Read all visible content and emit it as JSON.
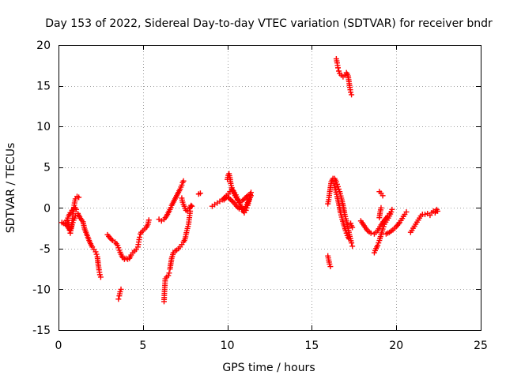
{
  "chart_data": {
    "type": "scatter",
    "title": "Day 153 of 2022, Sidereal Day-to-day VTEC variation (SDTVAR) for receiver bndr",
    "xlabel": "GPS time / hours",
    "ylabel": "SDTVAR / TECUs",
    "xlim": [
      0,
      25
    ],
    "ylim": [
      -15,
      20
    ],
    "xticks": [
      0,
      5,
      10,
      15,
      20,
      25
    ],
    "yticks": [
      -15,
      -10,
      -5,
      0,
      5,
      10,
      15,
      20
    ],
    "xtick_labels": [
      "0",
      "5",
      "10",
      "15",
      "20",
      "25"
    ],
    "ytick_labels": [
      "-15",
      "-10",
      "-5",
      "0",
      "5",
      "10",
      "15",
      "20"
    ],
    "grid": true,
    "marker": "plus",
    "color": "#ff0000",
    "series": [
      {
        "name": "SDTVAR",
        "segments": [
          [
            [
              0.2,
              -1.8
            ],
            [
              0.4,
              -2.0
            ],
            [
              0.55,
              -2.3
            ],
            [
              0.65,
              -2.7
            ],
            [
              0.7,
              -3.1
            ],
            [
              0.75,
              -2.5
            ],
            [
              0.8,
              -1.8
            ],
            [
              0.85,
              -1.0
            ],
            [
              0.9,
              -0.2
            ],
            [
              0.95,
              0.6
            ],
            [
              1.0,
              1.1
            ],
            [
              1.1,
              1.4
            ],
            [
              1.2,
              1.3
            ]
          ],
          [
            [
              0.5,
              -1.5
            ],
            [
              0.6,
              -1.0
            ],
            [
              0.7,
              -0.6
            ],
            [
              0.8,
              -0.3
            ],
            [
              0.9,
              -0.1
            ],
            [
              1.0,
              0.0
            ],
            [
              1.05,
              -0.2
            ]
          ],
          [
            [
              0.5,
              -1.6
            ],
            [
              0.6,
              -2.0
            ],
            [
              0.7,
              -2.8
            ],
            [
              0.8,
              -2.1
            ],
            [
              0.9,
              -1.5
            ],
            [
              1.0,
              -1.0
            ]
          ],
          [
            [
              1.15,
              -0.7
            ],
            [
              1.3,
              -1.3
            ],
            [
              1.45,
              -1.7
            ],
            [
              1.55,
              -2.6
            ],
            [
              1.7,
              -3.4
            ],
            [
              1.85,
              -4.2
            ],
            [
              2.0,
              -4.8
            ],
            [
              2.1,
              -5.1
            ],
            [
              2.2,
              -5.4
            ],
            [
              2.3,
              -6.0
            ],
            [
              2.35,
              -6.9
            ],
            [
              2.4,
              -7.6
            ],
            [
              2.45,
              -8.2
            ],
            [
              2.5,
              -8.5
            ]
          ],
          [
            [
              2.9,
              -3.3
            ],
            [
              3.05,
              -3.7
            ],
            [
              3.2,
              -4.0
            ],
            [
              3.35,
              -4.2
            ],
            [
              3.5,
              -4.6
            ],
            [
              3.6,
              -5.2
            ],
            [
              3.7,
              -5.7
            ],
            [
              3.8,
              -6.1
            ],
            [
              3.9,
              -6.3
            ],
            [
              4.0,
              -6.2
            ],
            [
              4.1,
              -6.3
            ],
            [
              4.2,
              -6.2
            ],
            [
              4.3,
              -5.8
            ],
            [
              4.4,
              -5.5
            ],
            [
              4.5,
              -5.3
            ],
            [
              4.6,
              -5.1
            ],
            [
              4.7,
              -4.8
            ],
            [
              4.75,
              -4.2
            ],
            [
              4.8,
              -3.6
            ],
            [
              4.85,
              -3.2
            ],
            [
              4.9,
              -3.0
            ],
            [
              5.0,
              -2.8
            ],
            [
              5.1,
              -2.6
            ],
            [
              5.2,
              -2.4
            ],
            [
              5.3,
              -2.0
            ],
            [
              5.35,
              -1.5
            ]
          ],
          [
            [
              3.55,
              -11.2
            ],
            [
              3.6,
              -10.8
            ],
            [
              3.65,
              -10.3
            ],
            [
              3.7,
              -10.0
            ]
          ],
          [
            [
              5.95,
              -1.4
            ],
            [
              6.1,
              -1.6
            ],
            [
              6.25,
              -1.4
            ],
            [
              6.4,
              -1.0
            ],
            [
              6.5,
              -0.6
            ],
            [
              6.6,
              -0.2
            ],
            [
              6.7,
              0.3
            ],
            [
              6.8,
              0.7
            ],
            [
              6.9,
              1.1
            ],
            [
              7.0,
              1.5
            ],
            [
              7.1,
              1.9
            ],
            [
              7.2,
              2.3
            ],
            [
              7.3,
              2.8
            ],
            [
              7.35,
              3.1
            ],
            [
              7.4,
              3.3
            ]
          ],
          [
            [
              6.25,
              -11.5
            ],
            [
              6.27,
              -10.5
            ],
            [
              6.3,
              -9.5
            ],
            [
              6.32,
              -8.7
            ],
            [
              6.4,
              -8.5
            ],
            [
              6.5,
              -8.3
            ],
            [
              6.55,
              -8.0
            ]
          ],
          [
            [
              6.6,
              -7.5
            ],
            [
              6.7,
              -6.2
            ],
            [
              6.8,
              -5.5
            ],
            [
              6.9,
              -5.3
            ],
            [
              7.0,
              -5.2
            ],
            [
              7.1,
              -5.0
            ],
            [
              7.2,
              -4.8
            ],
            [
              7.3,
              -4.5
            ],
            [
              7.4,
              -4.2
            ],
            [
              7.5,
              -3.8
            ],
            [
              7.55,
              -3.3
            ],
            [
              7.6,
              -2.8
            ],
            [
              7.7,
              -2.0
            ],
            [
              7.75,
              -1.2
            ],
            [
              7.8,
              -0.4
            ]
          ],
          [
            [
              7.3,
              1.2
            ],
            [
              7.35,
              0.7
            ],
            [
              7.45,
              0.2
            ],
            [
              7.55,
              -0.3
            ],
            [
              7.65,
              -0.4
            ],
            [
              7.75,
              -0.1
            ],
            [
              7.85,
              0.3
            ],
            [
              7.9,
              0.2
            ]
          ],
          [
            [
              8.3,
              1.7
            ],
            [
              8.4,
              1.8
            ]
          ],
          [
            [
              9.1,
              0.2
            ],
            [
              9.25,
              0.4
            ],
            [
              9.4,
              0.6
            ],
            [
              9.55,
              0.8
            ],
            [
              9.7,
              1.0
            ],
            [
              9.85,
              1.3
            ],
            [
              9.95,
              1.5
            ],
            [
              10.05,
              1.7
            ],
            [
              10.15,
              2.0
            ],
            [
              10.25,
              2.3
            ],
            [
              10.35,
              2.1
            ],
            [
              10.5,
              1.6
            ],
            [
              10.6,
              1.1
            ],
            [
              10.75,
              0.4
            ],
            [
              10.9,
              -0.2
            ],
            [
              11.0,
              -0.6
            ],
            [
              11.1,
              -0.3
            ],
            [
              11.2,
              0.3
            ],
            [
              11.3,
              1.0
            ],
            [
              11.35,
              1.6
            ],
            [
              11.4,
              1.9
            ]
          ],
          [
            [
              10.0,
              3.5
            ],
            [
              10.05,
              4.0
            ],
            [
              10.1,
              4.2
            ],
            [
              10.15,
              3.7
            ],
            [
              10.2,
              3.0
            ],
            [
              10.3,
              2.2
            ],
            [
              10.45,
              1.5
            ],
            [
              10.6,
              1.0
            ],
            [
              10.75,
              0.8
            ],
            [
              10.9,
              0.9
            ],
            [
              11.05,
              1.2
            ],
            [
              11.2,
              1.5
            ],
            [
              11.35,
              1.7
            ]
          ],
          [
            [
              9.8,
              1.0
            ],
            [
              9.95,
              1.3
            ],
            [
              10.1,
              1.2
            ],
            [
              10.25,
              0.9
            ],
            [
              10.4,
              0.6
            ],
            [
              10.55,
              0.2
            ],
            [
              10.7,
              -0.1
            ],
            [
              10.85,
              -0.2
            ],
            [
              11.0,
              -0.1
            ],
            [
              11.15,
              0.4
            ],
            [
              11.3,
              1.1
            ],
            [
              11.4,
              1.5
            ]
          ],
          [
            [
              16.45,
              18.3
            ],
            [
              16.5,
              17.8
            ],
            [
              16.55,
              17.2
            ],
            [
              16.6,
              16.8
            ],
            [
              16.65,
              16.5
            ],
            [
              16.75,
              16.3
            ],
            [
              16.85,
              16.1
            ],
            [
              16.95,
              16.3
            ],
            [
              17.05,
              16.6
            ],
            [
              17.15,
              16.2
            ],
            [
              17.2,
              15.5
            ],
            [
              17.25,
              14.8
            ],
            [
              17.3,
              14.2
            ],
            [
              17.35,
              13.9
            ]
          ],
          [
            [
              15.95,
              -5.9
            ],
            [
              16.0,
              -6.4
            ],
            [
              16.05,
              -6.9
            ],
            [
              16.1,
              -7.2
            ]
          ],
          [
            [
              15.95,
              0.5
            ],
            [
              16.0,
              1.0
            ],
            [
              16.05,
              1.8
            ],
            [
              16.1,
              2.5
            ],
            [
              16.15,
              3.2
            ],
            [
              16.25,
              3.6
            ],
            [
              16.35,
              3.6
            ],
            [
              16.45,
              3.2
            ],
            [
              16.55,
              2.6
            ],
            [
              16.65,
              2.0
            ],
            [
              16.75,
              1.2
            ],
            [
              16.85,
              0.3
            ],
            [
              16.95,
              -0.8
            ],
            [
              17.05,
              -1.6
            ],
            [
              17.15,
              -2.5
            ],
            [
              17.25,
              -3.5
            ],
            [
              17.35,
              -4.3
            ],
            [
              17.4,
              -4.7
            ]
          ],
          [
            [
              16.3,
              3.0
            ],
            [
              16.4,
              2.2
            ],
            [
              16.5,
              1.4
            ],
            [
              16.6,
              0.5
            ],
            [
              16.7,
              -0.6
            ],
            [
              16.8,
              -1.4
            ],
            [
              16.9,
              -2.1
            ],
            [
              17.0,
              -2.8
            ],
            [
              17.1,
              -3.4
            ],
            [
              17.2,
              -3.8
            ]
          ],
          [
            [
              17.3,
              -1.9
            ],
            [
              17.35,
              -2.2
            ],
            [
              17.4,
              -2.4
            ]
          ],
          [
            [
              17.9,
              -1.6
            ],
            [
              18.1,
              -2.2
            ],
            [
              18.3,
              -2.8
            ],
            [
              18.5,
              -3.1
            ],
            [
              18.7,
              -3.2
            ],
            [
              18.9,
              -2.8
            ],
            [
              19.1,
              -2.1
            ],
            [
              19.3,
              -1.5
            ],
            [
              19.5,
              -1.0
            ],
            [
              19.6,
              -0.7
            ]
          ],
          [
            [
              18.7,
              -5.5
            ],
            [
              18.8,
              -5.0
            ],
            [
              18.9,
              -4.6
            ],
            [
              19.0,
              -4.0
            ],
            [
              19.1,
              -3.3
            ],
            [
              19.2,
              -2.6
            ],
            [
              19.3,
              -2.0
            ],
            [
              19.45,
              -1.5
            ],
            [
              19.6,
              -1.0
            ],
            [
              19.7,
              -0.5
            ],
            [
              19.75,
              -0.2
            ]
          ],
          [
            [
              19.0,
              -1.2
            ],
            [
              19.05,
              -0.5
            ],
            [
              19.1,
              0.0
            ]
          ],
          [
            [
              19.0,
              2.0
            ],
            [
              19.1,
              1.8
            ],
            [
              19.2,
              1.5
            ]
          ],
          [
            [
              19.4,
              -3.2
            ],
            [
              19.6,
              -3.0
            ],
            [
              19.8,
              -2.7
            ],
            [
              20.0,
              -2.3
            ],
            [
              20.2,
              -1.8
            ],
            [
              20.35,
              -1.3
            ],
            [
              20.5,
              -0.8
            ],
            [
              20.6,
              -0.5
            ]
          ],
          [
            [
              20.85,
              -3.0
            ],
            [
              21.0,
              -2.5
            ],
            [
              21.15,
              -2.0
            ],
            [
              21.3,
              -1.5
            ],
            [
              21.45,
              -1.0
            ],
            [
              21.55,
              -0.8
            ],
            [
              21.7,
              -0.8
            ],
            [
              21.85,
              -0.7
            ],
            [
              22.0,
              -0.9
            ],
            [
              22.1,
              -0.6
            ],
            [
              22.2,
              -0.4
            ],
            [
              22.3,
              -0.6
            ],
            [
              22.4,
              -0.2
            ],
            [
              22.45,
              -0.4
            ]
          ]
        ]
      }
    ]
  }
}
